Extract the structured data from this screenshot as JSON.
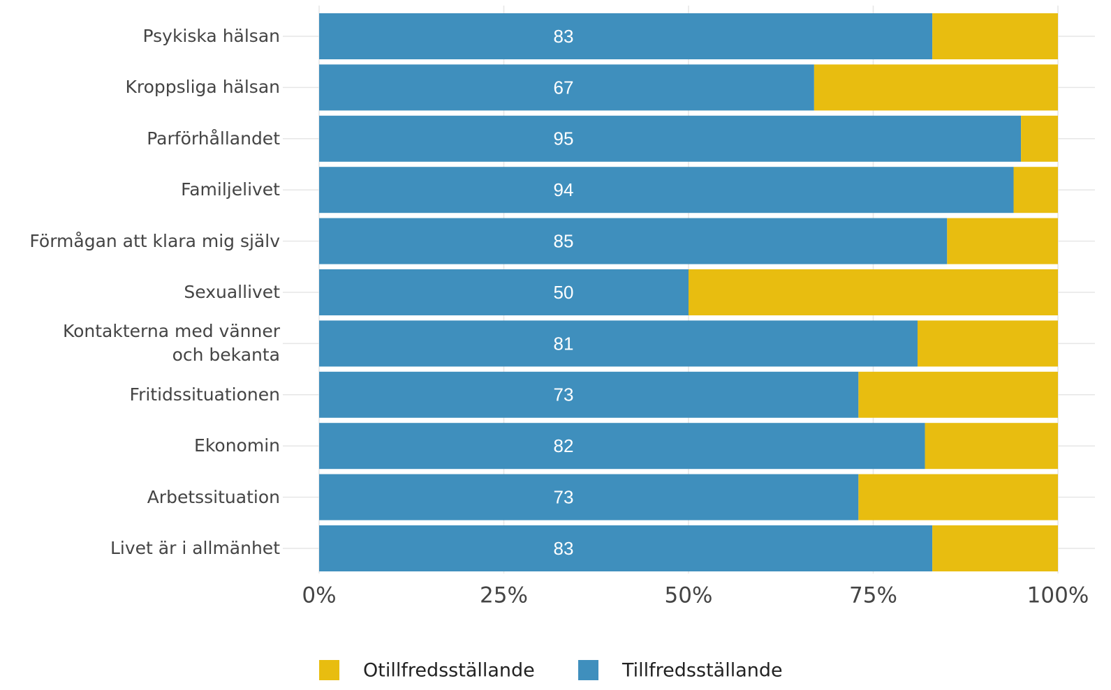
{
  "chart_data": {
    "type": "bar",
    "orientation": "horizontal",
    "stacked": true,
    "categories": [
      "Psykiska hälsan",
      "Kroppsliga hälsan",
      "Parförhållandet",
      "Familjelivet",
      "Förmågan att klara mig själv",
      "Sexuallivet",
      "Kontakterna med vänner\noch bekanta",
      "Fritidssituationen",
      "Ekonomin",
      "Arbetssituation",
      "Livet är i allmänhet"
    ],
    "series": [
      {
        "name": "Otillfredsställande",
        "color": "#e8bd10",
        "values": [
          17,
          33,
          5,
          6,
          15,
          50,
          19,
          27,
          18,
          27,
          17
        ]
      },
      {
        "name": "Tillfredsställande",
        "color": "#3f8fbd",
        "values": [
          83,
          67,
          95,
          94,
          85,
          50,
          81,
          73,
          82,
          73,
          83
        ]
      }
    ],
    "xlim": [
      0,
      100
    ],
    "xticks": [
      {
        "value": 0,
        "label": "0%"
      },
      {
        "value": 25,
        "label": "25%"
      },
      {
        "value": 50,
        "label": "50%"
      },
      {
        "value": 75,
        "label": "75%"
      },
      {
        "value": 100,
        "label": "100%"
      }
    ],
    "grid": true,
    "legend": "bottom"
  }
}
